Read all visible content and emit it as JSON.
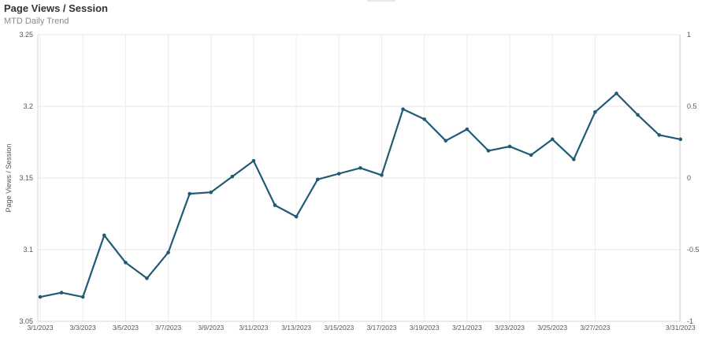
{
  "chart_data": {
    "type": "line",
    "title": "Page Views / Session",
    "subtitle": "MTD Daily Trend",
    "ylabel": "Page Views / Session",
    "xlabel": "",
    "ylim": [
      3.05,
      3.25
    ],
    "yticks": [
      "3.05",
      "3.1",
      "3.15",
      "3.2",
      "3.25"
    ],
    "y2lim": [
      -1,
      1
    ],
    "y2ticks": [
      "-1",
      "-0.5",
      "0",
      "0.5",
      "1"
    ],
    "x_tick_labels": [
      "3/1/2023",
      "3/3/2023",
      "3/5/2023",
      "3/7/2023",
      "3/9/2023",
      "3/11/2023",
      "3/13/2023",
      "3/15/2023",
      "3/17/2023",
      "3/19/2023",
      "3/21/2023",
      "3/23/2023",
      "3/25/2023",
      "3/27/2023",
      "3/31/2023"
    ],
    "grid": true,
    "series": [
      {
        "color": "#1f5c73",
        "x": [
          "3/1/2023",
          "3/2/2023",
          "3/3/2023",
          "3/4/2023",
          "3/5/2023",
          "3/6/2023",
          "3/7/2023",
          "3/8/2023",
          "3/9/2023",
          "3/10/2023",
          "3/11/2023",
          "3/12/2023",
          "3/13/2023",
          "3/14/2023",
          "3/15/2023",
          "3/16/2023",
          "3/17/2023",
          "3/18/2023",
          "3/19/2023",
          "3/20/2023",
          "3/21/2023",
          "3/22/2023",
          "3/23/2023",
          "3/24/2023",
          "3/25/2023",
          "3/26/2023",
          "3/27/2023",
          "3/28/2023",
          "3/29/2023",
          "3/30/2023",
          "3/31/2023"
        ],
        "values": [
          3.067,
          3.07,
          3.067,
          3.11,
          3.091,
          3.08,
          3.098,
          3.139,
          3.14,
          3.151,
          3.162,
          3.131,
          3.123,
          3.149,
          3.153,
          3.157,
          3.152,
          3.198,
          3.191,
          3.176,
          3.184,
          3.169,
          3.172,
          3.166,
          3.177,
          3.163,
          3.196,
          3.209,
          3.194,
          3.18,
          3.177
        ]
      }
    ]
  }
}
